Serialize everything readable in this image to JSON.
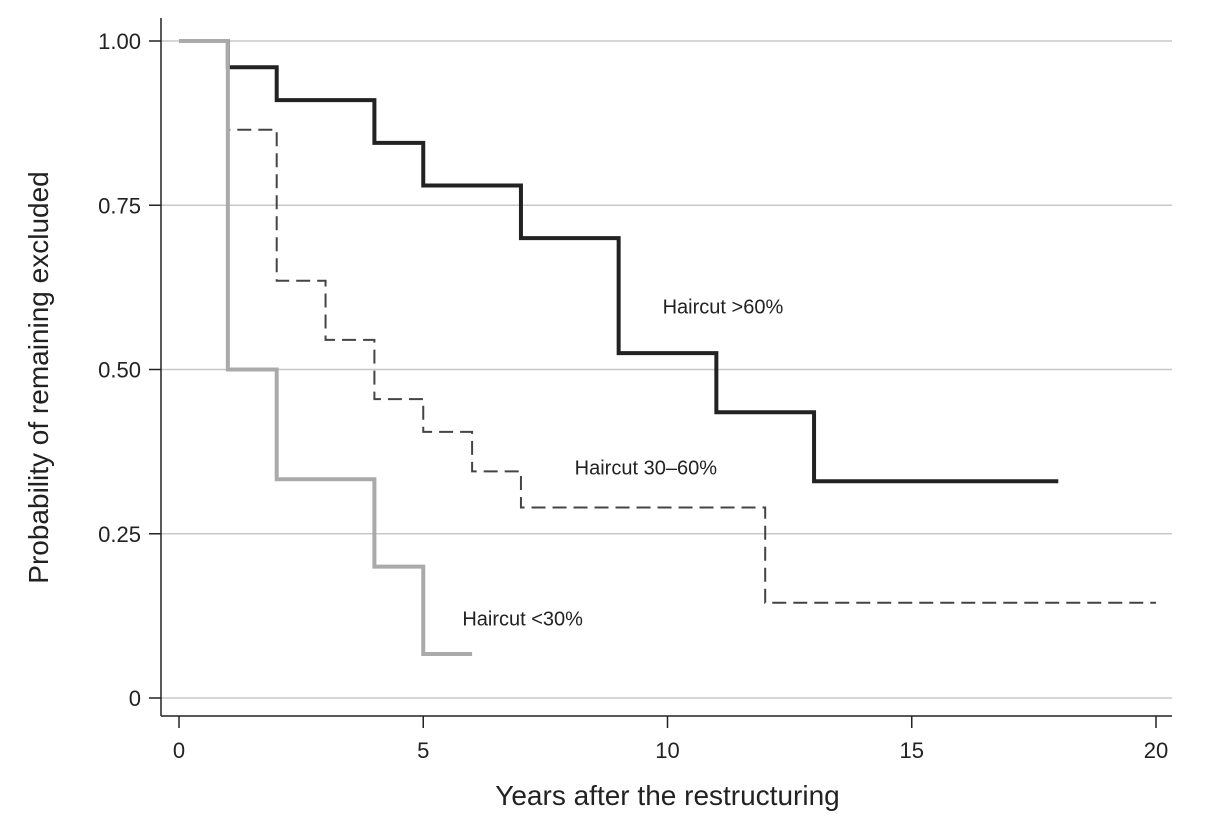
{
  "chart_data": {
    "type": "line",
    "step": true,
    "title": "",
    "xlabel": "Years after the restructuring",
    "ylabel": "Probability of remaining excluded",
    "xlim": [
      0,
      20
    ],
    "ylim": [
      0,
      1
    ],
    "xticks": [
      0,
      5,
      10,
      15,
      20
    ],
    "xtick_labels": [
      "0",
      "5",
      "10",
      "15",
      "20"
    ],
    "yticks": [
      0,
      0.25,
      0.5,
      0.75,
      1.0
    ],
    "ytick_labels": [
      "0",
      "0.25",
      "0.50",
      "0.75",
      "1.00"
    ],
    "grid": "horizontal",
    "legend": "none",
    "series": [
      {
        "name": "Haircut >60%",
        "color": "#222222",
        "style": "solid",
        "x": [
          0,
          1,
          2,
          4,
          5,
          7,
          9,
          11,
          13,
          18
        ],
        "y": [
          1.0,
          0.96,
          0.91,
          0.845,
          0.78,
          0.7,
          0.525,
          0.435,
          0.33,
          0.33
        ]
      },
      {
        "name": "Haircut 30–60%",
        "color": "#444444",
        "style": "dashed",
        "x": [
          0,
          1,
          2,
          3,
          4,
          5,
          6,
          7,
          12,
          20
        ],
        "y": [
          1.0,
          0.865,
          0.635,
          0.545,
          0.455,
          0.405,
          0.345,
          0.29,
          0.145,
          0.145
        ]
      },
      {
        "name": "Haircut <30%",
        "color": "#aaaaaa",
        "style": "solid",
        "x": [
          0,
          1,
          2,
          4,
          5,
          6
        ],
        "y": [
          1.0,
          0.5,
          0.333,
          0.2,
          0.067,
          0.067
        ]
      }
    ],
    "annotations": [
      {
        "text": "Haircut >60%",
        "x": 9.9,
        "y": 0.585
      },
      {
        "text": "Haircut 30–60%",
        "x": 8.1,
        "y": 0.34
      },
      {
        "text": "Haircut <30%",
        "x": 5.8,
        "y": 0.11
      }
    ]
  }
}
